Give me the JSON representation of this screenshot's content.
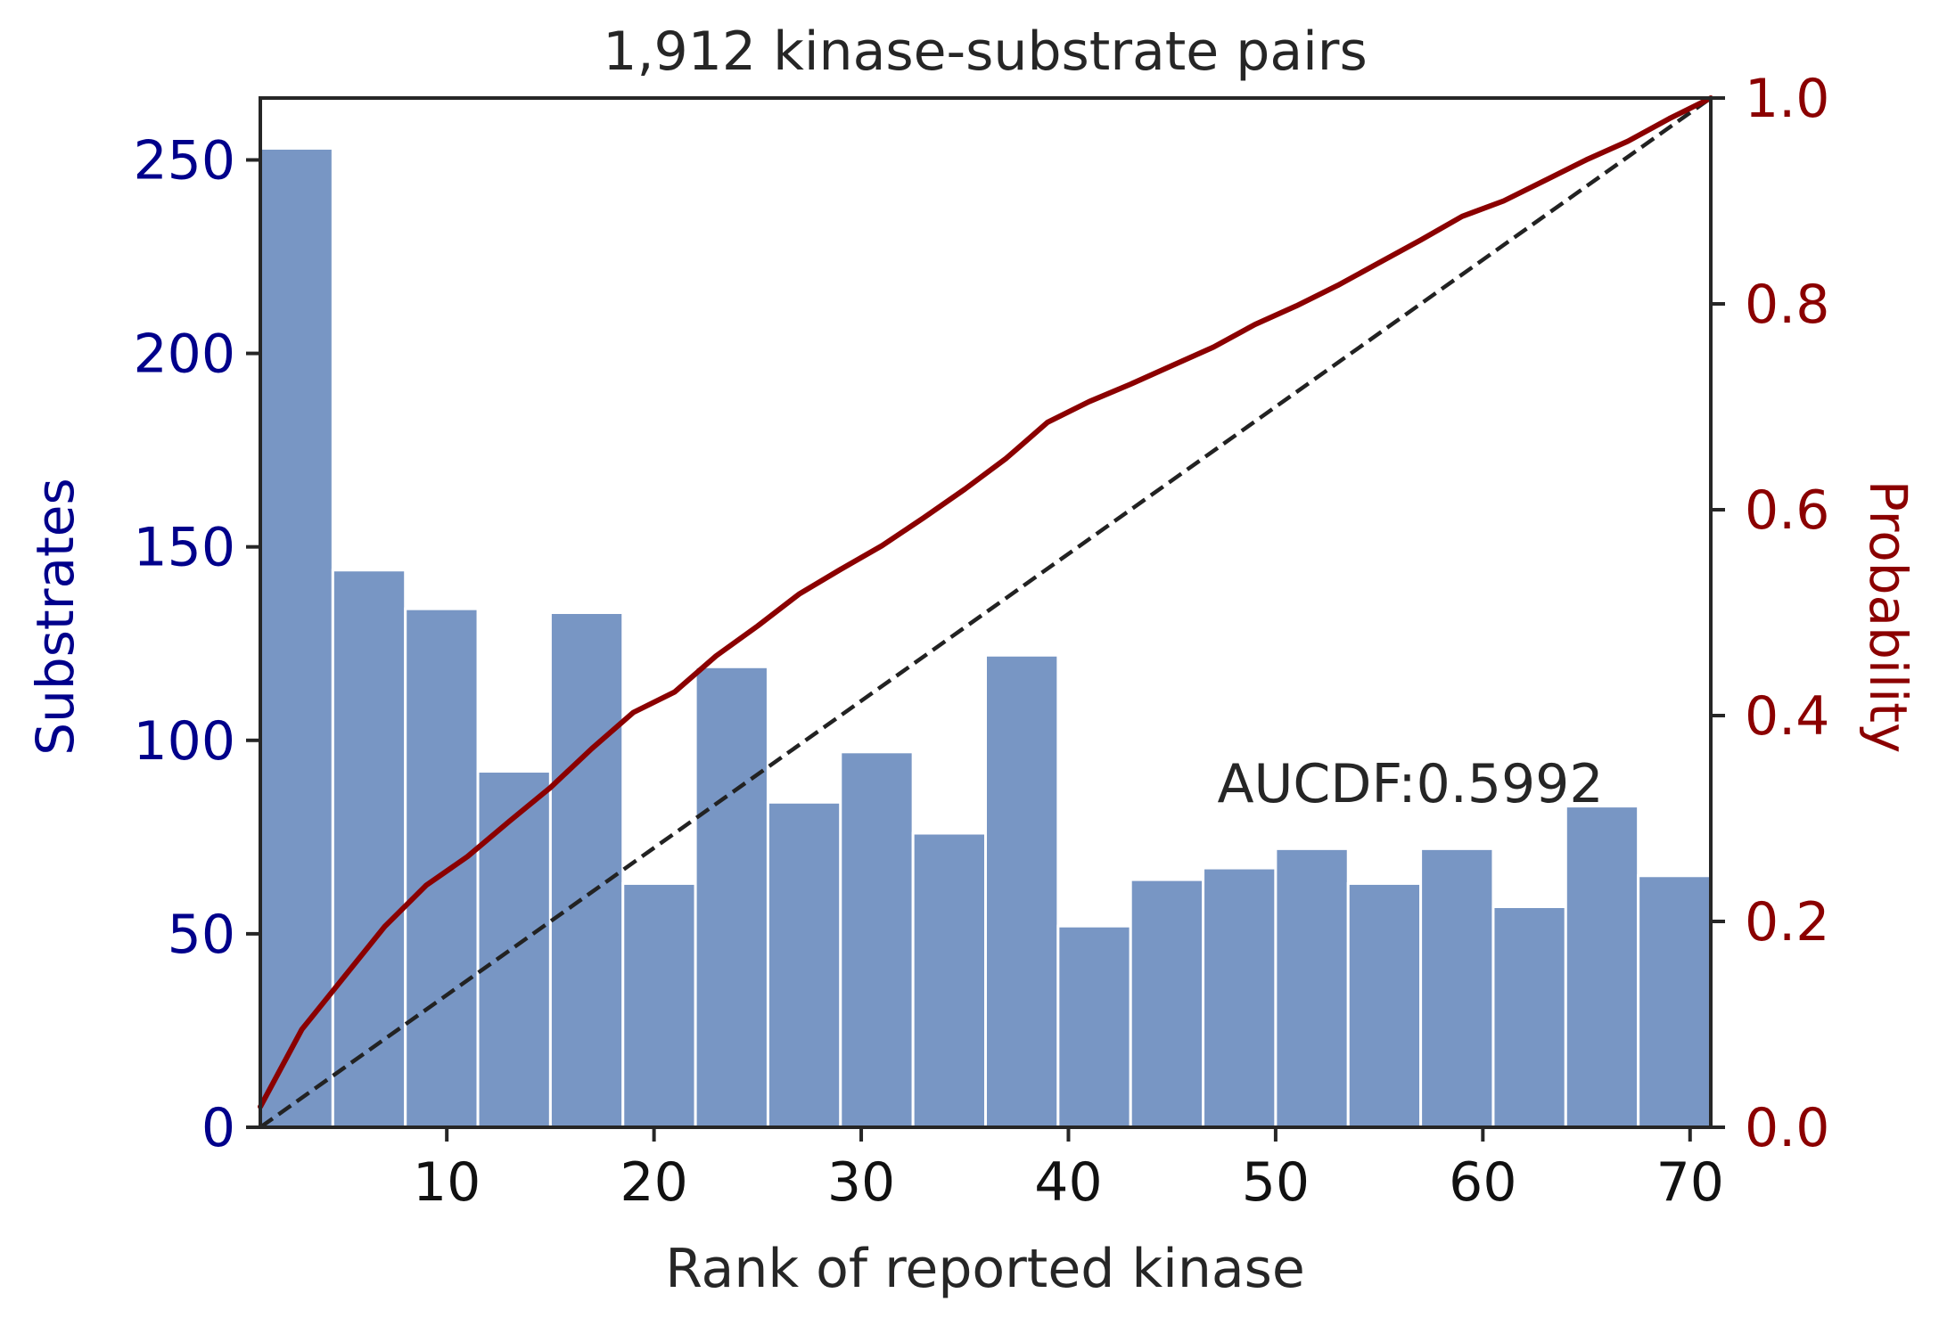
{
  "chart_data": {
    "type": "bar",
    "title": "1,912 kinase-substrate pairs",
    "xlabel": "Rank of reported kinase",
    "ylabel": "Substrates",
    "ylabel_right": "Probability",
    "xlim": [
      1,
      71
    ],
    "ylim": [
      0,
      266
    ],
    "ylim_right": [
      0,
      1.0
    ],
    "xticks": [
      10,
      20,
      30,
      40,
      50,
      60,
      70
    ],
    "yticks": [
      0,
      50,
      100,
      150,
      200,
      250
    ],
    "yticks_right": [
      "0.0",
      "0.2",
      "0.4",
      "0.6",
      "0.8",
      "1.0"
    ],
    "bins": [
      {
        "x0": 1.0,
        "x1": 4.5,
        "value": 253
      },
      {
        "x0": 4.5,
        "x1": 8.0,
        "value": 144
      },
      {
        "x0": 8.0,
        "x1": 11.5,
        "value": 134
      },
      {
        "x0": 11.5,
        "x1": 15.0,
        "value": 92
      },
      {
        "x0": 15.0,
        "x1": 18.5,
        "value": 133
      },
      {
        "x0": 18.5,
        "x1": 22.0,
        "value": 63
      },
      {
        "x0": 22.0,
        "x1": 25.5,
        "value": 119
      },
      {
        "x0": 25.5,
        "x1": 29.0,
        "value": 84
      },
      {
        "x0": 29.0,
        "x1": 32.5,
        "value": 97
      },
      {
        "x0": 32.5,
        "x1": 36.0,
        "value": 76
      },
      {
        "x0": 36.0,
        "x1": 39.5,
        "value": 122
      },
      {
        "x0": 39.5,
        "x1": 43.0,
        "value": 52
      },
      {
        "x0": 43.0,
        "x1": 46.5,
        "value": 64
      },
      {
        "x0": 46.5,
        "x1": 50.0,
        "value": 67
      },
      {
        "x0": 50.0,
        "x1": 53.5,
        "value": 72
      },
      {
        "x0": 53.5,
        "x1": 57.0,
        "value": 63
      },
      {
        "x0": 57.0,
        "x1": 60.5,
        "value": 72
      },
      {
        "x0": 60.5,
        "x1": 64.0,
        "value": 57
      },
      {
        "x0": 64.0,
        "x1": 67.5,
        "value": 83
      },
      {
        "x0": 67.5,
        "x1": 71.0,
        "value": 65
      }
    ],
    "cdf": {
      "x": [
        1,
        3,
        5,
        7,
        9,
        11,
        13,
        15,
        17,
        19,
        21,
        23,
        25,
        27,
        29,
        31,
        33,
        35,
        37,
        39,
        41,
        43,
        45,
        47,
        49,
        51,
        53,
        55,
        57,
        59,
        61,
        63,
        65,
        67,
        69,
        71
      ],
      "y": [
        0.02,
        0.095,
        0.145,
        0.195,
        0.235,
        0.263,
        0.297,
        0.33,
        0.368,
        0.403,
        0.423,
        0.458,
        0.487,
        0.518,
        0.542,
        0.565,
        0.592,
        0.62,
        0.65,
        0.685,
        0.705,
        0.722,
        0.74,
        0.758,
        0.78,
        0.798,
        0.818,
        0.84,
        0.862,
        0.885,
        0.9,
        0.92,
        0.94,
        0.958,
        0.98,
        1.0
      ]
    },
    "diagonal": {
      "x": [
        1,
        71
      ],
      "y": [
        0,
        1.0
      ]
    },
    "annotation": "AUCDF:0.5992",
    "grid": false,
    "colors": {
      "bars": "#7896c4",
      "cdf_line": "#8b0000",
      "diagonal": "#222222",
      "left_axis_text": "#00008b",
      "right_axis_text": "#8b0000",
      "text": "#262626"
    }
  }
}
